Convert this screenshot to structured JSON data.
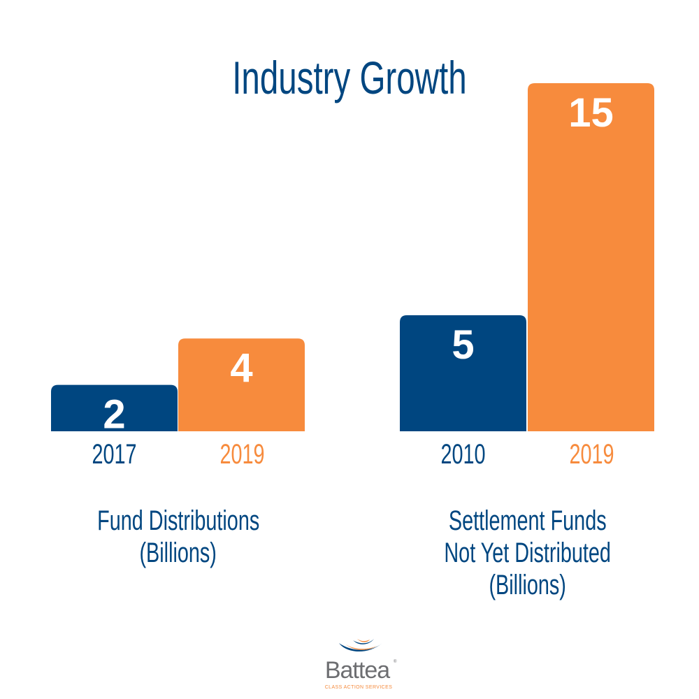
{
  "colors": {
    "blue": "#004680",
    "orange": "#f78b3d",
    "white": "#ffffff"
  },
  "chart_data": {
    "type": "bar",
    "title": "Industry Growth",
    "ylim": [
      0,
      15
    ],
    "grid": false,
    "groups": [
      {
        "label_lines": [
          "Fund Distributions",
          "(Billions)"
        ],
        "categories": [
          "2017",
          "2019"
        ],
        "values": [
          2,
          4
        ],
        "value_labels": [
          "2",
          "4"
        ],
        "colors": [
          "#004680",
          "#f78b3d"
        ]
      },
      {
        "label_lines": [
          "Settlement Funds",
          "Not Yet Distributed",
          "(Billions)"
        ],
        "categories": [
          "2010",
          "2019"
        ],
        "values": [
          5,
          15
        ],
        "value_labels": [
          "5",
          "15"
        ],
        "colors": [
          "#004680",
          "#f78b3d"
        ]
      }
    ]
  },
  "logo": {
    "name": "Battea",
    "registered": "®",
    "tagline": "CLASS ACTION SERVICES"
  }
}
